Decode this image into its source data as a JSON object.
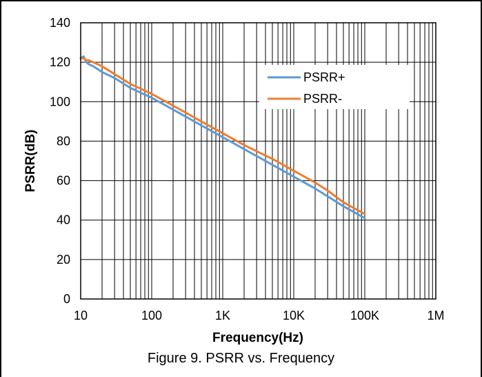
{
  "caption": "Figure 9. PSRR vs. Frequency",
  "chart_data": {
    "type": "line",
    "title": "",
    "xlabel": "Frequency(Hz)",
    "ylabel": "PSRR(dB)",
    "xscale": "log",
    "xlim": [
      10,
      1000000
    ],
    "ylim": [
      0,
      140
    ],
    "x_ticks": [
      10,
      100,
      1000,
      10000,
      100000,
      1000000
    ],
    "x_tick_labels": [
      "10",
      "100",
      "1K",
      "10K",
      "100K",
      "1M"
    ],
    "y_ticks": [
      0,
      20,
      40,
      60,
      80,
      100,
      120,
      140
    ],
    "y_tick_labels": [
      "0",
      "20",
      "40",
      "60",
      "80",
      "100",
      "120",
      "140"
    ],
    "grid": true,
    "legend_position": "top-right",
    "series": [
      {
        "name": "PSRR+",
        "color": "#5b9bd5",
        "x": [
          10,
          11,
          12,
          13,
          15,
          20,
          30,
          50,
          100,
          200,
          500,
          1000,
          2000,
          5000,
          10000,
          20000,
          30000,
          50000,
          100000
        ],
        "y": [
          122,
          123,
          120,
          119,
          118,
          115,
          112,
          107,
          102,
          96,
          88,
          82,
          76,
          68,
          62,
          56,
          52,
          47,
          41
        ]
      },
      {
        "name": "PSRR-",
        "color": "#ed7d31",
        "x": [
          10,
          11,
          12,
          13,
          15,
          20,
          30,
          50,
          100,
          200,
          500,
          1000,
          2000,
          5000,
          10000,
          20000,
          30000,
          50000,
          100000
        ],
        "y": [
          122,
          122,
          121,
          121,
          120,
          118,
          114,
          109,
          104,
          98,
          90,
          84,
          78,
          71,
          65,
          59,
          55,
          49,
          43
        ]
      }
    ]
  }
}
